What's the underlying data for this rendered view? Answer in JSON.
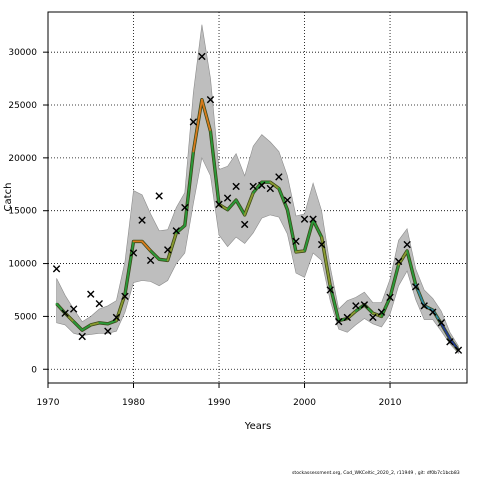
{
  "footer_text": "stockassessment.org, Cod_WKCeltic_2020_2, r11949 , git: df0b7c1bcb83",
  "chart_data": {
    "type": "line",
    "xlabel": "Years",
    "ylabel": "Catch",
    "xlim": [
      1970,
      2019
    ],
    "ylim": [
      -1300,
      33800
    ],
    "x_ticks": [
      1970,
      1980,
      1990,
      2000,
      2010
    ],
    "y_ticks": [
      0,
      5000,
      10000,
      15000,
      20000,
      25000,
      30000
    ],
    "grid": "dotted",
    "band_color": "#bebebe",
    "observed_marker": "x",
    "years": [
      1971,
      1972,
      1973,
      1974,
      1975,
      1976,
      1977,
      1978,
      1979,
      1980,
      1981,
      1982,
      1983,
      1984,
      1985,
      1986,
      1987,
      1988,
      1989,
      1990,
      1991,
      1992,
      1993,
      1994,
      1995,
      1996,
      1997,
      1998,
      1999,
      2000,
      2001,
      2002,
      2003,
      2004,
      2005,
      2006,
      2007,
      2008,
      2009,
      2010,
      2011,
      2012,
      2013,
      2014,
      2015,
      2016,
      2017,
      2018
    ],
    "estimate": [
      6200,
      5300,
      4500,
      3700,
      4200,
      4400,
      4300,
      4600,
      7100,
      12100,
      12100,
      11200,
      10400,
      10300,
      12900,
      13600,
      20600,
      25500,
      22500,
      15600,
      15100,
      16000,
      14600,
      16700,
      17700,
      17700,
      17100,
      15100,
      11100,
      11200,
      14100,
      12500,
      7900,
      4600,
      4800,
      5500,
      6100,
      5300,
      5000,
      6800,
      9900,
      11200,
      8000,
      6000,
      5600,
      4300,
      2900,
      1800
    ],
    "lower": [
      4400,
      4200,
      3400,
      3200,
      3300,
      3400,
      3400,
      3600,
      5400,
      8200,
      8400,
      8300,
      7900,
      8400,
      10000,
      11000,
      15700,
      20000,
      18300,
      12700,
      11600,
      12500,
      11900,
      12900,
      14300,
      14600,
      14400,
      12800,
      9100,
      8700,
      11000,
      10300,
      6500,
      3800,
      3500,
      4200,
      4800,
      4300,
      4000,
      5200,
      7900,
      9300,
      6600,
      4700,
      4700,
      3600,
      2400,
      1500
    ],
    "upper": [
      8600,
      7000,
      5700,
      4500,
      5000,
      5700,
      6000,
      6500,
      10200,
      16900,
      16500,
      14700,
      13100,
      13200,
      15300,
      16700,
      26200,
      32600,
      27500,
      18900,
      19200,
      20400,
      18300,
      21100,
      22200,
      21500,
      20600,
      18300,
      14500,
      14700,
      17600,
      15000,
      9700,
      5700,
      6500,
      6800,
      7300,
      6300,
      6300,
      8500,
      12200,
      13300,
      9500,
      7500,
      6700,
      5500,
      3500,
      2200
    ],
    "observed": {
      "years": [
        1971,
        1972,
        1973,
        1974,
        1975,
        1976,
        1977,
        1978,
        1979,
        1980,
        1981,
        1982,
        1983,
        1984,
        1985,
        1986,
        1987,
        1988,
        1989,
        1990,
        1991,
        1992,
        1993,
        1994,
        1995,
        1996,
        1997,
        1998,
        1999,
        2000,
        2001,
        2002,
        2003,
        2004,
        2005,
        2006,
        2007,
        2008,
        2009,
        2010,
        2011,
        2012,
        2013,
        2014,
        2015,
        2016,
        2017,
        2018
      ],
      "values": [
        9500,
        5300,
        5700,
        3100,
        7100,
        6200,
        3600,
        4900,
        6900,
        11000,
        14100,
        10300,
        16400,
        11300,
        13100,
        15300,
        23400,
        29600,
        25500,
        15600,
        16200,
        17300,
        13700,
        17300,
        17400,
        17100,
        18200,
        16000,
        12100,
        14200,
        14200,
        11800,
        7500,
        4500,
        4900,
        6000,
        6100,
        4900,
        5400,
        6800,
        10200,
        11800,
        7800,
        6000,
        5400,
        4400,
        2600,
        1800
      ]
    },
    "palette": [
      "#d97a1c",
      "#2a9a3a",
      "#2f8aa0",
      "#8a9a30",
      "#223a96",
      "#6a2a8a"
    ]
  }
}
